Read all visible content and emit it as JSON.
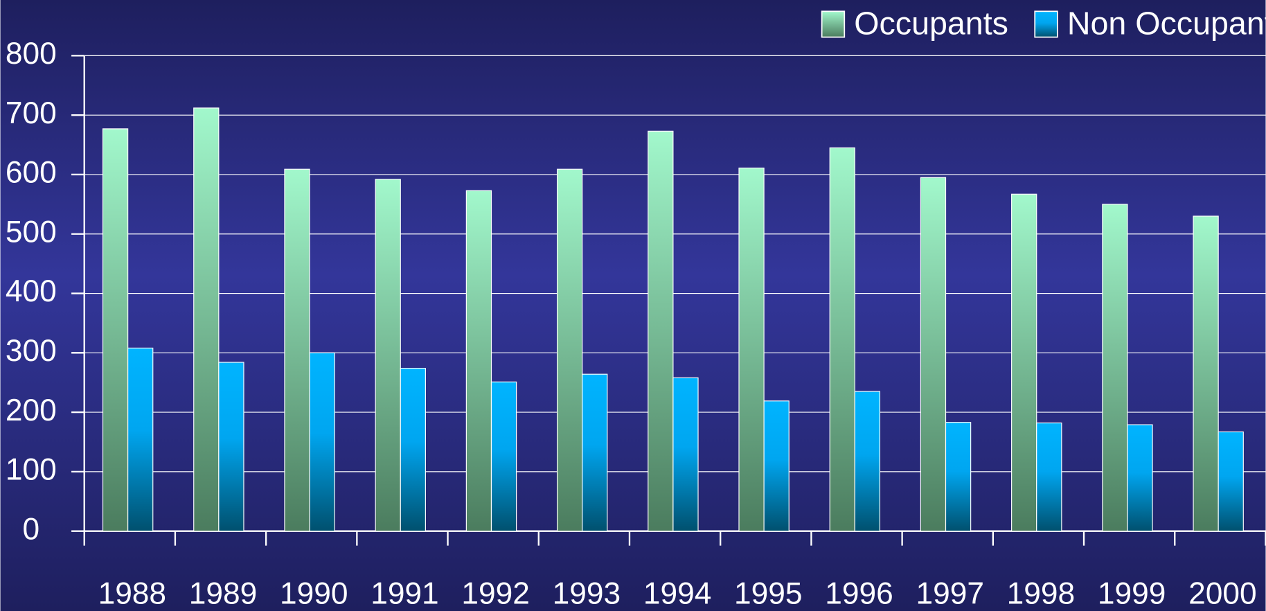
{
  "chart_data": {
    "type": "bar",
    "categories": [
      "1988",
      "1989",
      "1990",
      "1991",
      "1992",
      "1993",
      "1994",
      "1995",
      "1996",
      "1997",
      "1998",
      "1999",
      "2000"
    ],
    "series": [
      {
        "name": "Occupants",
        "color": "#9ff7cb",
        "values": [
          677,
          712,
          609,
          592,
          573,
          609,
          673,
          611,
          645,
          595,
          567,
          550,
          530
        ]
      },
      {
        "name": "Non Occupants",
        "color": "#00b0ff",
        "values": [
          308,
          284,
          300,
          274,
          251,
          264,
          258,
          219,
          235,
          183,
          182,
          179,
          167
        ]
      }
    ],
    "ylim": [
      0,
      800
    ],
    "yticks": [
      0,
      100,
      200,
      300,
      400,
      500,
      600,
      700,
      800
    ],
    "grid": true,
    "legend": "top-right"
  }
}
